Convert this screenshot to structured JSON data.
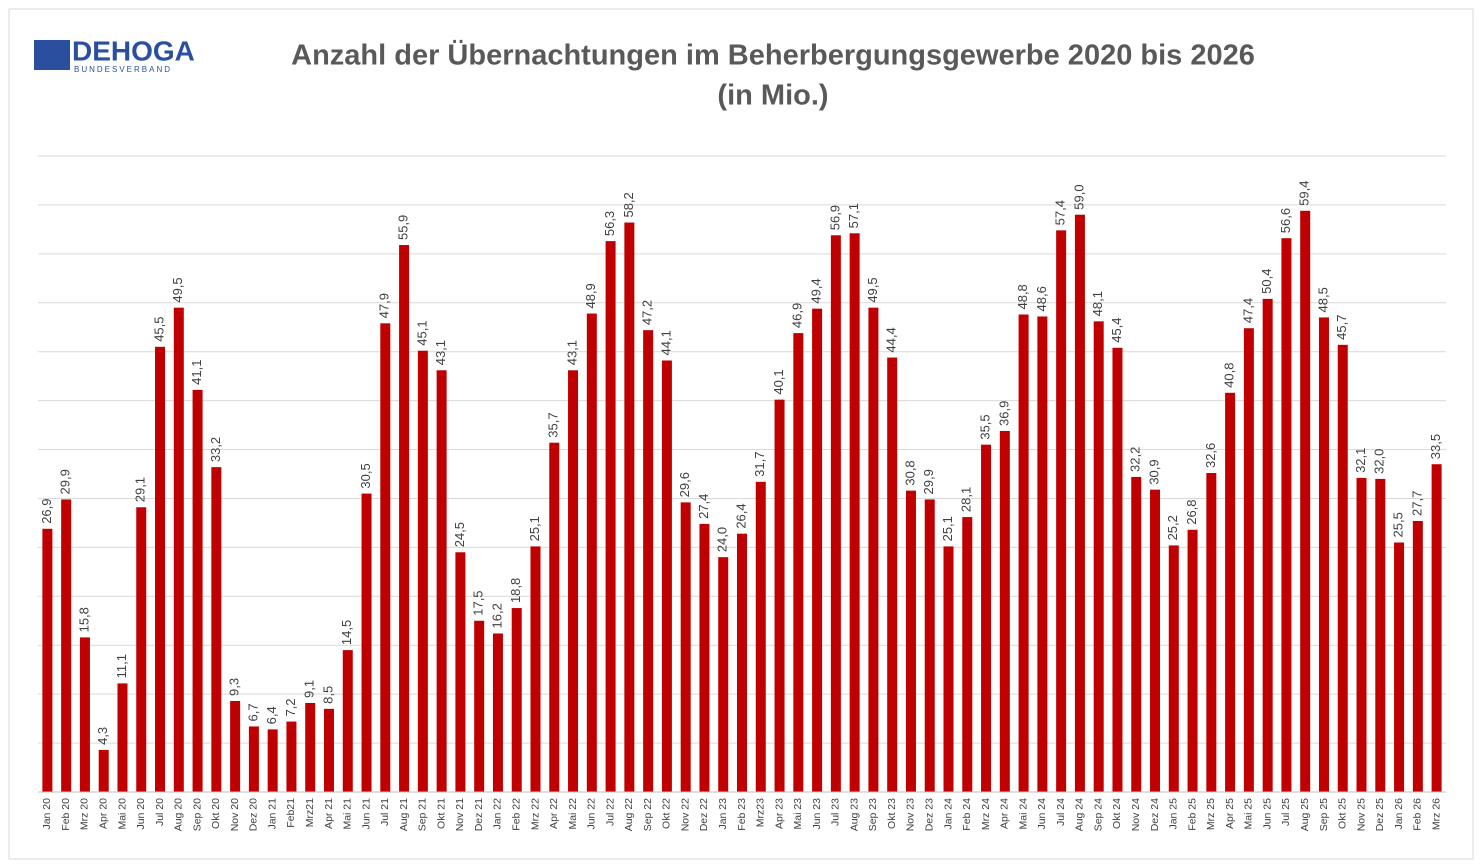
{
  "logo": {
    "name": "DEHOGA",
    "tagline": "BUNDESVERBAND"
  },
  "chart_data": {
    "type": "bar",
    "title": "Anzahl der Übernachtungen im Beherbergungsgewerbe 2020 bis 2026",
    "subtitle": "(in Mio.)",
    "categories": [
      "Jan 20",
      "Feb 20",
      "Mrz 20",
      "Apr 20",
      "Mai 20",
      "Jun 20",
      "Jul 20",
      "Aug 20",
      "Sep 20",
      "Okt 20",
      "Nov 20",
      "Dez 20",
      "Jan 21",
      "Feb21",
      "Mrz21",
      "Apr 21",
      "Mai 21",
      "Jun 21",
      "Jul 21",
      "Aug 21",
      "Sep 21",
      "Okt 21",
      "Nov 21",
      "Dez 21",
      "Jan 22",
      "Feb 22",
      "Mrz 22",
      "Apr 22",
      "Mai 22",
      "Jun 22",
      "Jul 22",
      "Aug 22",
      "Sep 22",
      "Okt 22",
      "Nov 22",
      "Dez 22",
      "Jan 23",
      "Feb 23",
      "Mrz23",
      "Apr 23",
      "Mai 23",
      "Jun 23",
      "Jul 23",
      "Aug 23",
      "Sep 23",
      "Okt 23",
      "Nov 23",
      "Dez 23",
      "Jan 24",
      "Feb 24",
      "Mrz 24",
      "Apr 24",
      "Mai 24",
      "Jun 24",
      "Jul 24",
      "Aug 24",
      "Sep 24",
      "Okt 24",
      "Nov 24",
      "Dez 24",
      "Jan 25",
      "Feb 25",
      "Mrz 25",
      "Apr 25",
      "Mai 25",
      "Jun 25",
      "Jul 25",
      "Aug 25",
      "Sep 25",
      "Okt 25",
      "Nov 25",
      "Dez 25",
      "Jan 26",
      "Feb 26",
      "Mrz 26"
    ],
    "values": [
      26.9,
      29.9,
      15.8,
      4.3,
      11.1,
      29.1,
      45.5,
      49.5,
      41.1,
      33.2,
      9.3,
      6.7,
      6.4,
      7.2,
      9.1,
      8.5,
      14.5,
      30.5,
      47.9,
      55.9,
      45.1,
      43.1,
      24.5,
      17.5,
      16.2,
      18.8,
      25.1,
      35.7,
      43.1,
      48.9,
      56.3,
      58.2,
      47.2,
      44.1,
      29.6,
      27.4,
      24.0,
      26.4,
      31.7,
      40.1,
      46.9,
      49.4,
      56.9,
      57.1,
      49.5,
      44.4,
      30.8,
      29.9,
      25.1,
      28.1,
      35.5,
      36.9,
      48.8,
      48.6,
      57.4,
      59.0,
      48.1,
      45.4,
      32.2,
      30.9,
      25.2,
      26.8,
      32.6,
      40.8,
      47.4,
      50.4,
      56.6,
      59.4,
      48.5,
      45.7,
      32.1,
      32.0,
      25.5,
      27.7,
      33.5
    ],
    "value_labels": [
      "26,9",
      "29,9",
      "15,8",
      "4,3",
      "11,1",
      "29,1",
      "45,5",
      "49,5",
      "41,1",
      "33,2",
      "9,3",
      "6,7",
      "6,4",
      "7,2",
      "9,1",
      "8,5",
      "14,5",
      "30,5",
      "47,9",
      "55,9",
      "45,1",
      "43,1",
      "24,5",
      "17,5",
      "16,2",
      "18,8",
      "25,1",
      "35,7",
      "43,1",
      "48,9",
      "56,3",
      "58,2",
      "47,2",
      "44,1",
      "29,6",
      "27,4",
      "24,0",
      "26,4",
      "31,7",
      "40,1",
      "46,9",
      "49,4",
      "56,9",
      "57,1",
      "49,5",
      "44,4",
      "30,8",
      "29,9",
      "25,1",
      "28,1",
      "35,5",
      "36,9",
      "48,8",
      "48,6",
      "57,4",
      "59,0",
      "48,1",
      "45,4",
      "32,2",
      "30,9",
      "25,2",
      "26,8",
      "32,6",
      "40,8",
      "47,4",
      "50,4",
      "56,6",
      "59,4",
      "48,5",
      "45,7",
      "32,1",
      "32,0",
      "25,5",
      "27,7",
      "33,5"
    ],
    "color": "#c00000",
    "ylim": [
      0,
      65
    ],
    "yticks": [
      0,
      5,
      10,
      15,
      20,
      25,
      30,
      35,
      40,
      45,
      50,
      55,
      60,
      65
    ],
    "grid": true
  }
}
